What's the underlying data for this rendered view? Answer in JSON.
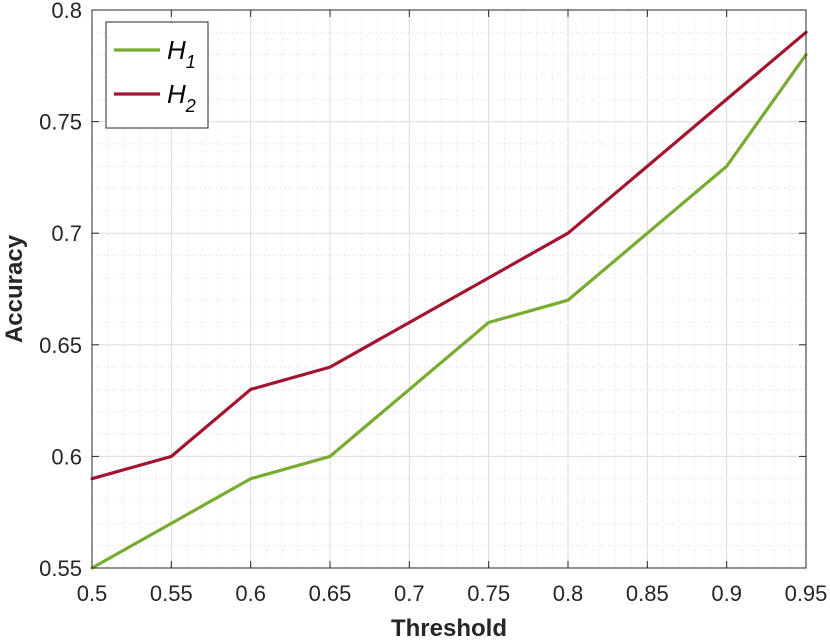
{
  "chart_data": {
    "type": "line",
    "title": "",
    "xlabel": "Threshold",
    "ylabel": "Accuracy",
    "xlim": [
      0.5,
      0.95
    ],
    "ylim": [
      0.55,
      0.8
    ],
    "x_ticks": [
      "0.5",
      "0.55",
      "0.6",
      "0.65",
      "0.7",
      "0.75",
      "0.8",
      "0.85",
      "0.9",
      "0.95"
    ],
    "y_ticks": [
      "0.55",
      "0.6",
      "0.65",
      "0.7",
      "0.75",
      "0.8"
    ],
    "grid": true,
    "minor_grid": true,
    "legend_position": "top-left",
    "x": [
      0.5,
      0.55,
      0.6,
      0.65,
      0.7,
      0.75,
      0.8,
      0.85,
      0.9,
      0.95
    ],
    "series": [
      {
        "name": "H1",
        "legend_base": "H",
        "legend_sub": "1",
        "color": "#77AC30",
        "values": [
          0.55,
          0.57,
          0.59,
          0.6,
          0.63,
          0.66,
          0.67,
          0.7,
          0.73,
          0.78
        ]
      },
      {
        "name": "H2",
        "legend_base": "H",
        "legend_sub": "2",
        "color": "#A2142F",
        "values": [
          0.59,
          0.6,
          0.63,
          0.64,
          0.66,
          0.68,
          0.7,
          0.73,
          0.76,
          0.79
        ]
      }
    ]
  }
}
